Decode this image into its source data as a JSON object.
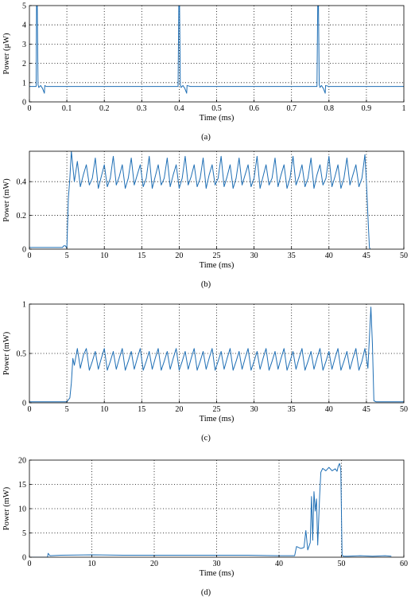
{
  "chart_data": [
    {
      "type": "line",
      "caption": "(a)",
      "xlabel": "Time (ms)",
      "ylabel": "Power (μW)",
      "xlim": [
        0,
        1
      ],
      "ylim": [
        0,
        5
      ],
      "xticks": [
        "0",
        "0.1",
        "0.2",
        "0.3",
        "0.4",
        "0.5",
        "0.6",
        "0.7",
        "0.8",
        "0.9",
        "1"
      ],
      "yticks": [
        "0",
        "1",
        "2",
        "3",
        "4",
        "5"
      ],
      "grid": true,
      "color": "#1f6fb5",
      "series": [
        {
          "x": [
            0,
            0.018,
            0.019,
            0.021,
            0.023,
            0.025,
            0.03,
            0.035,
            0.04,
            0.041,
            0.045,
            0.1,
            0.2,
            0.3,
            0.397,
            0.399,
            0.401,
            0.403,
            0.405,
            0.41,
            0.415,
            0.42,
            0.421,
            0.43,
            0.5,
            0.6,
            0.7,
            0.768,
            0.77,
            0.772,
            0.774,
            0.776,
            0.78,
            0.785,
            0.79,
            0.791,
            0.8,
            0.9,
            1.0
          ],
          "y": [
            0.8,
            0.8,
            5,
            5,
            0.9,
            0.75,
            0.85,
            0.7,
            0.45,
            0.85,
            0.8,
            0.8,
            0.8,
            0.8,
            0.8,
            5,
            5,
            0.9,
            0.75,
            0.85,
            0.7,
            0.45,
            0.85,
            0.8,
            0.8,
            0.8,
            0.8,
            0.8,
            5,
            5,
            0.9,
            0.75,
            0.85,
            0.7,
            0.45,
            0.85,
            0.8,
            0.8,
            0.8
          ]
        }
      ]
    },
    {
      "type": "line",
      "caption": "(b)",
      "xlabel": "Time (ms)",
      "ylabel": "Power (mW)",
      "xlim": [
        0,
        50
      ],
      "ylim": [
        0,
        0.58
      ],
      "xticks": [
        "0",
        "5",
        "10",
        "15",
        "20",
        "25",
        "30",
        "35",
        "40",
        "45",
        "50"
      ],
      "yticks": [
        "0",
        "0.2",
        "0.4"
      ],
      "grid": true,
      "color": "#1f6fb5",
      "series": [
        {
          "x": [
            0,
            4.4,
            4.6,
            4.8,
            5.0,
            5.2,
            5.4,
            5.6,
            6.0,
            6.4,
            6.8,
            7.2,
            7.6,
            8.0,
            8.4,
            8.8,
            9.2,
            9.6,
            10.0,
            10.4,
            10.8,
            11.2,
            11.6,
            12.0,
            12.4,
            12.8,
            13.2,
            13.6,
            14.0,
            14.4,
            14.8,
            15.2,
            15.6,
            16.0,
            16.4,
            16.8,
            17.2,
            17.6,
            18.0,
            18.4,
            18.8,
            19.2,
            19.6,
            20.0,
            20.4,
            20.8,
            21.2,
            21.6,
            22.0,
            22.4,
            22.8,
            23.2,
            23.6,
            24.0,
            24.4,
            24.8,
            25.2,
            25.6,
            26.0,
            26.4,
            26.8,
            27.2,
            27.6,
            28.0,
            28.4,
            28.8,
            29.2,
            29.6,
            30.0,
            30.4,
            30.8,
            31.2,
            31.6,
            32.0,
            32.4,
            32.8,
            33.2,
            33.6,
            34.0,
            34.4,
            34.8,
            35.2,
            35.6,
            36.0,
            36.4,
            36.8,
            37.2,
            37.6,
            38.0,
            38.4,
            38.8,
            39.2,
            39.6,
            40.0,
            40.4,
            40.8,
            41.2,
            41.6,
            42.0,
            42.4,
            42.8,
            43.2,
            43.6,
            44.0,
            44.4,
            44.8,
            45.0,
            45.2,
            45.4,
            45.6,
            46.0,
            50
          ],
          "y": [
            0.01,
            0.01,
            0.02,
            0.02,
            0.005,
            0.3,
            0.42,
            0.58,
            0.4,
            0.52,
            0.37,
            0.44,
            0.5,
            0.38,
            0.42,
            0.54,
            0.36,
            0.43,
            0.5,
            0.37,
            0.42,
            0.55,
            0.38,
            0.43,
            0.5,
            0.36,
            0.42,
            0.54,
            0.38,
            0.44,
            0.5,
            0.37,
            0.42,
            0.55,
            0.36,
            0.43,
            0.5,
            0.38,
            0.42,
            0.54,
            0.37,
            0.44,
            0.5,
            0.36,
            0.42,
            0.55,
            0.38,
            0.43,
            0.5,
            0.37,
            0.42,
            0.54,
            0.36,
            0.44,
            0.5,
            0.38,
            0.42,
            0.55,
            0.37,
            0.43,
            0.5,
            0.36,
            0.42,
            0.54,
            0.38,
            0.44,
            0.5,
            0.37,
            0.42,
            0.55,
            0.36,
            0.43,
            0.5,
            0.38,
            0.42,
            0.54,
            0.37,
            0.44,
            0.5,
            0.36,
            0.42,
            0.55,
            0.38,
            0.43,
            0.5,
            0.37,
            0.42,
            0.54,
            0.36,
            0.44,
            0.5,
            0.38,
            0.42,
            0.55,
            0.37,
            0.43,
            0.5,
            0.36,
            0.42,
            0.54,
            0.38,
            0.44,
            0.5,
            0.37,
            0.42,
            0.56,
            0.4,
            0.2,
            0.01,
            -0.01,
            -0.01,
            -0.01
          ]
        }
      ]
    },
    {
      "type": "line",
      "caption": "(c)",
      "xlabel": "Time (ms)",
      "ylabel": "Power (mW)",
      "xlim": [
        0,
        50
      ],
      "ylim": [
        0,
        1
      ],
      "xticks": [
        "0",
        "5",
        "10",
        "15",
        "20",
        "25",
        "30",
        "35",
        "40",
        "45",
        "50"
      ],
      "yticks": [
        "0",
        "0.5",
        "1"
      ],
      "grid": true,
      "color": "#1f6fb5",
      "series": [
        {
          "x": [
            0,
            5.0,
            5.4,
            5.6,
            5.8,
            6.0,
            6.4,
            6.8,
            7.2,
            7.6,
            8.0,
            8.4,
            8.8,
            9.2,
            9.6,
            10.0,
            10.4,
            10.8,
            11.2,
            11.6,
            12.0,
            12.4,
            12.8,
            13.2,
            13.6,
            14.0,
            14.4,
            14.8,
            15.2,
            15.6,
            16.0,
            16.4,
            16.8,
            17.2,
            17.6,
            18.0,
            18.4,
            18.8,
            19.2,
            19.6,
            20.0,
            20.4,
            20.8,
            21.2,
            21.6,
            22.0,
            22.4,
            22.8,
            23.2,
            23.6,
            24.0,
            24.4,
            24.8,
            25.2,
            25.6,
            26.0,
            26.4,
            26.8,
            27.2,
            27.6,
            28.0,
            28.4,
            28.8,
            29.2,
            29.6,
            30.0,
            30.4,
            30.8,
            31.2,
            31.6,
            32.0,
            32.4,
            32.8,
            33.2,
            33.6,
            34.0,
            34.4,
            34.8,
            35.2,
            35.6,
            36.0,
            36.4,
            36.8,
            37.2,
            37.6,
            38.0,
            38.4,
            38.8,
            39.2,
            39.6,
            40.0,
            40.4,
            40.8,
            41.2,
            41.6,
            42.0,
            42.4,
            42.8,
            43.2,
            43.6,
            44.0,
            44.4,
            44.8,
            45.2,
            45.6,
            45.8,
            46.0,
            46.3,
            50
          ],
          "y": [
            0.01,
            0.01,
            0.05,
            0.2,
            0.45,
            0.38,
            0.55,
            0.35,
            0.48,
            0.55,
            0.33,
            0.42,
            0.52,
            0.34,
            0.45,
            0.55,
            0.33,
            0.42,
            0.52,
            0.34,
            0.45,
            0.55,
            0.33,
            0.42,
            0.52,
            0.34,
            0.45,
            0.55,
            0.33,
            0.42,
            0.52,
            0.34,
            0.45,
            0.55,
            0.33,
            0.42,
            0.52,
            0.34,
            0.45,
            0.55,
            0.33,
            0.42,
            0.52,
            0.34,
            0.45,
            0.55,
            0.33,
            0.42,
            0.52,
            0.34,
            0.45,
            0.55,
            0.33,
            0.42,
            0.52,
            0.34,
            0.45,
            0.55,
            0.33,
            0.42,
            0.52,
            0.34,
            0.45,
            0.55,
            0.33,
            0.42,
            0.52,
            0.34,
            0.45,
            0.55,
            0.33,
            0.42,
            0.52,
            0.34,
            0.45,
            0.55,
            0.33,
            0.42,
            0.52,
            0.34,
            0.45,
            0.55,
            0.33,
            0.42,
            0.52,
            0.34,
            0.45,
            0.55,
            0.33,
            0.42,
            0.52,
            0.34,
            0.45,
            0.55,
            0.33,
            0.42,
            0.52,
            0.34,
            0.45,
            0.55,
            0.33,
            0.42,
            0.55,
            0.35,
            0.97,
            0.6,
            0.02,
            0.01,
            0.01
          ]
        }
      ]
    },
    {
      "type": "line",
      "caption": "(d)",
      "xlabel": "Time (ms)",
      "ylabel": "Power (mW)",
      "xlim": [
        0,
        60
      ],
      "ylim": [
        0,
        20
      ],
      "xticks": [
        "0",
        "10",
        "20",
        "30",
        "40",
        "50",
        "60"
      ],
      "yticks": [
        "0",
        "5",
        "10",
        "15",
        "20"
      ],
      "grid": true,
      "color": "#1f6fb5",
      "series": [
        {
          "x": [
            0,
            2.9,
            3.0,
            3.3,
            5,
            10,
            15,
            20,
            25,
            30,
            35,
            40,
            42.5,
            42.8,
            43.5,
            44.0,
            44.3,
            44.6,
            45.0,
            45.2,
            45.4,
            45.6,
            45.8,
            46.0,
            46.2,
            46.5,
            46.7,
            47.0,
            47.5,
            48,
            48.5,
            49,
            49.3,
            49.5,
            49.7,
            49.9,
            50.1,
            50.3,
            51,
            53,
            55,
            57,
            58
          ],
          "y": [
            0,
            0,
            0.8,
            0.3,
            0.4,
            0.5,
            0.4,
            0.4,
            0.4,
            0.4,
            0.4,
            0.3,
            0.3,
            2.2,
            1.8,
            2.0,
            5.5,
            1.5,
            3.0,
            12.5,
            3.5,
            13.5,
            9.5,
            12.0,
            2.5,
            12.5,
            17.5,
            18.3,
            17.8,
            18.5,
            17.8,
            18.2,
            17.7,
            18.8,
            19.3,
            18.0,
            0.5,
            0.2,
            0.2,
            0.3,
            0.2,
            0.3,
            0.2
          ]
        }
      ]
    }
  ]
}
